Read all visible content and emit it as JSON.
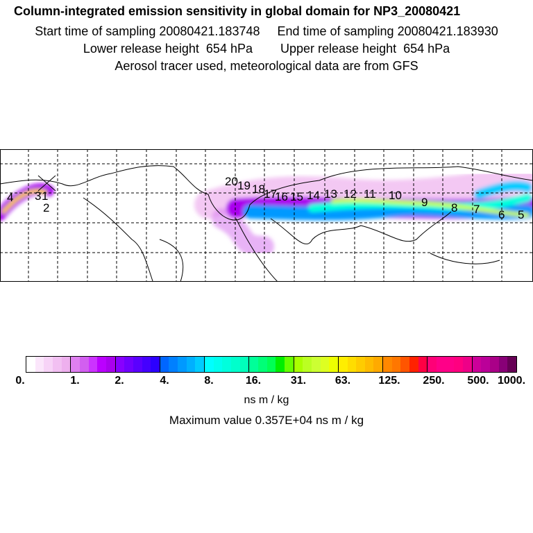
{
  "header": {
    "title": "Column-integrated emission sensitivity in global domain for NP3_20080421",
    "sampling": "Start time of sampling 20080421.183748     End time of sampling 20080421.183930",
    "release": "Lower release height  654 hPa        Upper release height  654 hPa",
    "note": "Aerosol tracer used, meteorological data are from GFS"
  },
  "map": {
    "day_labels": [
      "1",
      "2",
      "3",
      "4",
      "5",
      "6",
      "7",
      "8",
      "9",
      "10",
      "11",
      "12",
      "13",
      "14",
      "15",
      "16",
      "17",
      "18",
      "19",
      "20"
    ]
  },
  "colorbar": {
    "tick_labels": [
      "0.",
      "1.",
      "2.",
      "4.",
      "8.",
      "16.",
      "31.",
      "63.",
      "125.",
      "250.",
      "500.",
      "1000."
    ],
    "unit": "ns m / kg",
    "segments": [
      [
        "#ffffff",
        "#fbe6fb",
        "#f7d3f7",
        "#f2c0f2",
        "#eeb0ee"
      ],
      [
        "#df80f0",
        "#d25ff0",
        "#cc33ff",
        "#bb00ff",
        "#aa00ee"
      ],
      [
        "#8800ff",
        "#7000ff",
        "#5a00ff",
        "#4400ff",
        "#2c00ff"
      ],
      [
        "#0066ff",
        "#0080ff",
        "#0099ff",
        "#00b0ff",
        "#00ccff"
      ],
      [
        "#00ffff",
        "#00ffee",
        "#00ffdd",
        "#00ffcc",
        "#00ffbb"
      ],
      [
        "#00ff99",
        "#00ff77",
        "#00ff55",
        "#00ee00",
        "#66ff00"
      ],
      [
        "#aaff00",
        "#bbff22",
        "#ccff33",
        "#ddff22",
        "#eeff00"
      ],
      [
        "#ffee00",
        "#ffdd00",
        "#ffcc00",
        "#ffbb00",
        "#ffaa00"
      ],
      [
        "#ff8800",
        "#ff7700",
        "#ff5500",
        "#ff2200",
        "#ff0044"
      ],
      [
        "#ff0077",
        "#ff0088",
        "#ff0088",
        "#ff0080",
        "#ee0088"
      ],
      [
        "#cc0099",
        "#bb0099",
        "#aa0088",
        "#880077",
        "#660055"
      ]
    ]
  },
  "max_value": "Maximum value  0.357E+04 ns m / kg"
}
